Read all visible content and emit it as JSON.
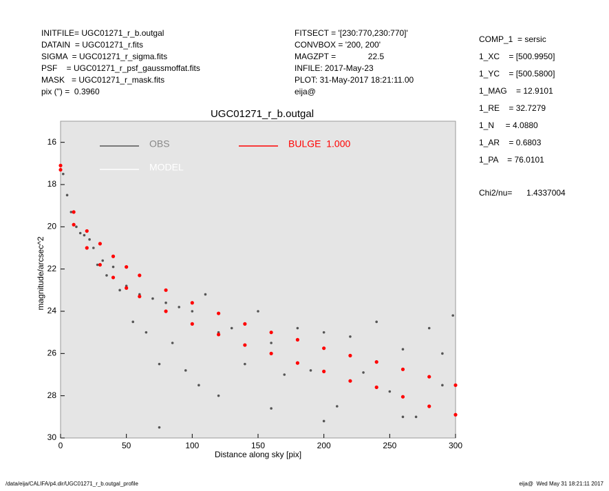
{
  "header": {
    "left": [
      "INITFILE= UGC01271_r_b.outgal",
      "DATAIN  = UGC01271_r.fits",
      "SIGMA  = UGC01271_r_sigma.fits",
      "PSF    = UGC01271_r_psf_gaussmoffat.fits",
      "MASK   = UGC01271_r_mask.fits",
      "pix (\") =  0.3960"
    ],
    "middle": [
      "FITSECT = '[230:770,230:770]'",
      "CONVBOX = '200, 200'",
      "MAGZPT =              22.5",
      "INFILE: 2017-May-23",
      "PLOT: 31-May-2017 18:21:11.00",
      "eija@"
    ],
    "right": [
      "COMP_1  = sersic",
      "1_XC    = [500.9950]",
      "1_YC    = [500.5800]",
      "1_MAG    = 12.9101",
      "1_RE    = 32.7279",
      "1_N     = 4.0880",
      "1_AR    = 0.6803",
      "1_PA    = 76.0101"
    ],
    "chi2_label": "Chi2/nu=",
    "chi2_value": "1.4337004"
  },
  "chart_data": {
    "type": "scatter",
    "title": "UGC01271_r_b.outgal",
    "x_label": "Distance along sky [pix]",
    "y_label": "magnitude/arcsec^2",
    "xlim": [
      0,
      300
    ],
    "ylim": [
      30,
      15
    ],
    "xticks": [
      0,
      50,
      100,
      150,
      200,
      250,
      300
    ],
    "yticks": [
      16,
      18,
      20,
      22,
      24,
      26,
      28,
      30
    ],
    "series": [
      {
        "name": "OBS",
        "color": "#555555",
        "x": [
          2,
          5,
          8,
          12,
          15,
          18,
          22,
          25,
          28,
          32,
          35,
          40,
          45,
          50,
          55,
          60,
          65,
          70,
          75,
          80,
          85,
          90,
          95,
          100,
          105,
          110,
          120,
          130,
          140,
          150,
          160,
          170,
          180,
          190,
          200,
          210,
          220,
          230,
          240,
          250,
          260,
          270,
          280,
          290,
          298,
          75,
          120,
          160,
          200,
          260,
          290
        ],
        "values": [
          17.5,
          18.5,
          19.3,
          20.0,
          20.3,
          20.4,
          20.6,
          21.0,
          21.8,
          21.6,
          22.3,
          21.9,
          23.0,
          22.8,
          24.5,
          23.2,
          25.0,
          23.4,
          26.5,
          23.6,
          25.5,
          23.8,
          26.8,
          24.0,
          27.5,
          23.2,
          25.0,
          24.8,
          26.5,
          24.0,
          25.5,
          27.0,
          24.8,
          26.8,
          25.0,
          28.5,
          25.2,
          26.9,
          24.5,
          27.8,
          25.8,
          29.0,
          24.8,
          27.5,
          24.2,
          29.5,
          28.0,
          28.6,
          29.2,
          29.0,
          26.0
        ]
      },
      {
        "name": "MODEL",
        "color": "#ffffff",
        "x": [],
        "values": []
      },
      {
        "name": "BULGE  1.000",
        "color": "#ff0000",
        "x": [
          0,
          10,
          20,
          30,
          40,
          50,
          60,
          80,
          100,
          120,
          140,
          160,
          180,
          200,
          220,
          240,
          260,
          280,
          300,
          0,
          10,
          20,
          30,
          40,
          50,
          60,
          80,
          100,
          120,
          140,
          160,
          180,
          200,
          220,
          240,
          260,
          280,
          300
        ],
        "values": [
          17.1,
          19.3,
          20.2,
          20.8,
          21.4,
          21.9,
          22.3,
          23.0,
          23.6,
          24.1,
          24.6,
          25.0,
          25.35,
          25.75,
          26.1,
          26.4,
          26.75,
          27.1,
          27.5,
          17.3,
          19.9,
          21.0,
          21.8,
          22.4,
          22.9,
          23.3,
          24.0,
          24.6,
          25.1,
          25.6,
          26.0,
          26.45,
          26.85,
          27.3,
          27.6,
          28.05,
          28.5,
          28.9
        ]
      }
    ]
  },
  "footer": {
    "left": "/data/eija/CALIFA/p4.dir/UGC01271_r_b.outgal_profile",
    "right": "eija@  Wed May 31 18:21:11 2017"
  }
}
